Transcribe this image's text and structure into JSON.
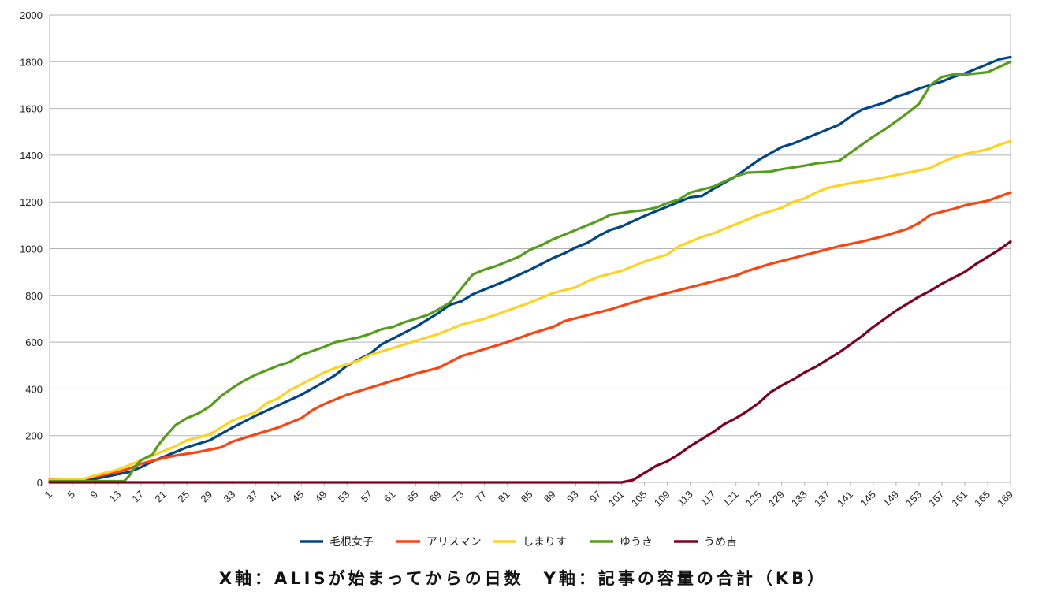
{
  "caption": "X軸：ALISが始まってからの日数　Y軸：記事の容量の合計（KB）",
  "chart_data": {
    "type": "line",
    "title": "",
    "xlabel": "X軸：ALISが始まってからの日数",
    "ylabel": "Y軸：記事の容量の合計（KB）",
    "xlim": [
      1,
      169
    ],
    "ylim": [
      0,
      2000
    ],
    "yticks": [
      0,
      200,
      400,
      600,
      800,
      1000,
      1200,
      1400,
      1600,
      1800,
      2000
    ],
    "xticks": [
      1,
      5,
      9,
      13,
      17,
      21,
      25,
      29,
      33,
      37,
      41,
      45,
      49,
      53,
      57,
      61,
      65,
      69,
      73,
      77,
      81,
      85,
      89,
      93,
      97,
      101,
      105,
      109,
      113,
      117,
      121,
      125,
      129,
      133,
      137,
      141,
      145,
      149,
      153,
      157,
      161,
      165,
      169
    ],
    "grid": true,
    "legend_position": "bottom",
    "series": [
      {
        "name": "毛根女子",
        "color": "#004586",
        "points": [
          [
            1,
            10
          ],
          [
            7,
            10
          ],
          [
            9,
            15
          ],
          [
            13,
            35
          ],
          [
            15,
            45
          ],
          [
            17,
            65
          ],
          [
            19,
            90
          ],
          [
            21,
            110
          ],
          [
            23,
            130
          ],
          [
            25,
            150
          ],
          [
            29,
            180
          ],
          [
            33,
            235
          ],
          [
            37,
            285
          ],
          [
            41,
            330
          ],
          [
            45,
            375
          ],
          [
            49,
            430
          ],
          [
            51,
            460
          ],
          [
            53,
            500
          ],
          [
            57,
            550
          ],
          [
            59,
            590
          ],
          [
            61,
            615
          ],
          [
            63,
            640
          ],
          [
            65,
            665
          ],
          [
            67,
            695
          ],
          [
            69,
            725
          ],
          [
            71,
            760
          ],
          [
            73,
            775
          ],
          [
            75,
            805
          ],
          [
            77,
            825
          ],
          [
            79,
            845
          ],
          [
            81,
            865
          ],
          [
            85,
            910
          ],
          [
            87,
            935
          ],
          [
            89,
            960
          ],
          [
            91,
            980
          ],
          [
            93,
            1005
          ],
          [
            95,
            1025
          ],
          [
            97,
            1055
          ],
          [
            99,
            1080
          ],
          [
            101,
            1095
          ],
          [
            105,
            1140
          ],
          [
            109,
            1180
          ],
          [
            111,
            1200
          ],
          [
            113,
            1220
          ],
          [
            115,
            1225
          ],
          [
            117,
            1255
          ],
          [
            121,
            1310
          ],
          [
            125,
            1380
          ],
          [
            129,
            1435
          ],
          [
            131,
            1450
          ],
          [
            133,
            1470
          ],
          [
            135,
            1490
          ],
          [
            137,
            1510
          ],
          [
            139,
            1530
          ],
          [
            141,
            1565
          ],
          [
            143,
            1595
          ],
          [
            145,
            1610
          ],
          [
            147,
            1625
          ],
          [
            149,
            1650
          ],
          [
            151,
            1665
          ],
          [
            153,
            1685
          ],
          [
            155,
            1700
          ],
          [
            157,
            1715
          ],
          [
            159,
            1735
          ],
          [
            161,
            1750
          ],
          [
            163,
            1770
          ],
          [
            165,
            1790
          ],
          [
            167,
            1810
          ],
          [
            169,
            1820
          ]
        ]
      },
      {
        "name": "アリスマン",
        "color": "#ff420e",
        "points": [
          [
            1,
            15
          ],
          [
            7,
            15
          ],
          [
            9,
            25
          ],
          [
            13,
            45
          ],
          [
            15,
            60
          ],
          [
            17,
            80
          ],
          [
            21,
            105
          ],
          [
            23,
            115
          ],
          [
            27,
            130
          ],
          [
            31,
            150
          ],
          [
            33,
            175
          ],
          [
            35,
            190
          ],
          [
            37,
            205
          ],
          [
            41,
            235
          ],
          [
            43,
            255
          ],
          [
            45,
            275
          ],
          [
            47,
            310
          ],
          [
            49,
            335
          ],
          [
            51,
            355
          ],
          [
            53,
            375
          ],
          [
            57,
            405
          ],
          [
            61,
            435
          ],
          [
            65,
            465
          ],
          [
            69,
            490
          ],
          [
            71,
            515
          ],
          [
            73,
            540
          ],
          [
            77,
            570
          ],
          [
            81,
            600
          ],
          [
            85,
            635
          ],
          [
            89,
            665
          ],
          [
            91,
            690
          ],
          [
            95,
            715
          ],
          [
            99,
            740
          ],
          [
            101,
            755
          ],
          [
            105,
            785
          ],
          [
            109,
            810
          ],
          [
            113,
            835
          ],
          [
            117,
            860
          ],
          [
            121,
            885
          ],
          [
            123,
            905
          ],
          [
            127,
            935
          ],
          [
            131,
            960
          ],
          [
            135,
            985
          ],
          [
            139,
            1010
          ],
          [
            143,
            1030
          ],
          [
            147,
            1055
          ],
          [
            151,
            1085
          ],
          [
            153,
            1110
          ],
          [
            155,
            1145
          ],
          [
            159,
            1170
          ],
          [
            161,
            1185
          ],
          [
            165,
            1205
          ],
          [
            169,
            1240
          ]
        ]
      },
      {
        "name": "しまりす",
        "color": "#ffd320",
        "points": [
          [
            1,
            10
          ],
          [
            7,
            15
          ],
          [
            9,
            30
          ],
          [
            13,
            55
          ],
          [
            15,
            75
          ],
          [
            17,
            95
          ],
          [
            19,
            115
          ],
          [
            21,
            135
          ],
          [
            23,
            155
          ],
          [
            25,
            180
          ],
          [
            29,
            205
          ],
          [
            31,
            235
          ],
          [
            33,
            265
          ],
          [
            37,
            300
          ],
          [
            39,
            340
          ],
          [
            41,
            360
          ],
          [
            43,
            395
          ],
          [
            45,
            420
          ],
          [
            47,
            445
          ],
          [
            49,
            470
          ],
          [
            51,
            490
          ],
          [
            55,
            520
          ],
          [
            57,
            545
          ],
          [
            61,
            575
          ],
          [
            65,
            605
          ],
          [
            69,
            635
          ],
          [
            71,
            655
          ],
          [
            73,
            675
          ],
          [
            77,
            700
          ],
          [
            81,
            735
          ],
          [
            85,
            770
          ],
          [
            87,
            790
          ],
          [
            89,
            810
          ],
          [
            93,
            835
          ],
          [
            95,
            860
          ],
          [
            97,
            880
          ],
          [
            101,
            905
          ],
          [
            105,
            945
          ],
          [
            109,
            975
          ],
          [
            111,
            1010
          ],
          [
            115,
            1050
          ],
          [
            117,
            1065
          ],
          [
            121,
            1105
          ],
          [
            123,
            1125
          ],
          [
            125,
            1145
          ],
          [
            129,
            1175
          ],
          [
            131,
            1200
          ],
          [
            133,
            1215
          ],
          [
            135,
            1240
          ],
          [
            137,
            1260
          ],
          [
            141,
            1280
          ],
          [
            145,
            1295
          ],
          [
            149,
            1315
          ],
          [
            153,
            1335
          ],
          [
            155,
            1345
          ],
          [
            157,
            1370
          ],
          [
            159,
            1390
          ],
          [
            161,
            1405
          ],
          [
            165,
            1425
          ],
          [
            167,
            1445
          ],
          [
            169,
            1460
          ]
        ]
      },
      {
        "name": "ゆうき",
        "color": "#579d1c",
        "points": [
          [
            1,
            5
          ],
          [
            14,
            5
          ],
          [
            15,
            30
          ],
          [
            16,
            70
          ],
          [
            17,
            95
          ],
          [
            19,
            120
          ],
          [
            20,
            160
          ],
          [
            21,
            190
          ],
          [
            23,
            245
          ],
          [
            25,
            275
          ],
          [
            27,
            295
          ],
          [
            29,
            325
          ],
          [
            31,
            370
          ],
          [
            33,
            405
          ],
          [
            35,
            435
          ],
          [
            37,
            460
          ],
          [
            39,
            480
          ],
          [
            41,
            500
          ],
          [
            43,
            515
          ],
          [
            45,
            545
          ],
          [
            49,
            580
          ],
          [
            51,
            600
          ],
          [
            55,
            620
          ],
          [
            57,
            635
          ],
          [
            59,
            655
          ],
          [
            61,
            665
          ],
          [
            63,
            685
          ],
          [
            65,
            700
          ],
          [
            67,
            715
          ],
          [
            69,
            740
          ],
          [
            71,
            770
          ],
          [
            73,
            830
          ],
          [
            75,
            890
          ],
          [
            77,
            910
          ],
          [
            79,
            925
          ],
          [
            81,
            945
          ],
          [
            83,
            965
          ],
          [
            85,
            995
          ],
          [
            87,
            1015
          ],
          [
            89,
            1040
          ],
          [
            91,
            1060
          ],
          [
            93,
            1080
          ],
          [
            95,
            1100
          ],
          [
            97,
            1120
          ],
          [
            99,
            1145
          ],
          [
            103,
            1160
          ],
          [
            105,
            1165
          ],
          [
            107,
            1175
          ],
          [
            109,
            1195
          ],
          [
            111,
            1210
          ],
          [
            113,
            1240
          ],
          [
            117,
            1265
          ],
          [
            121,
            1310
          ],
          [
            123,
            1325
          ],
          [
            127,
            1330
          ],
          [
            129,
            1340
          ],
          [
            133,
            1355
          ],
          [
            135,
            1365
          ],
          [
            139,
            1375
          ],
          [
            141,
            1410
          ],
          [
            143,
            1445
          ],
          [
            145,
            1480
          ],
          [
            147,
            1510
          ],
          [
            149,
            1545
          ],
          [
            151,
            1580
          ],
          [
            153,
            1620
          ],
          [
            155,
            1700
          ],
          [
            157,
            1735
          ],
          [
            159,
            1745
          ],
          [
            161,
            1745
          ],
          [
            165,
            1755
          ],
          [
            169,
            1800
          ]
        ]
      },
      {
        "name": "うめ吉",
        "color": "#7e0021",
        "points": [
          [
            1,
            0
          ],
          [
            101,
            0
          ],
          [
            103,
            10
          ],
          [
            105,
            40
          ],
          [
            107,
            70
          ],
          [
            109,
            90
          ],
          [
            111,
            120
          ],
          [
            113,
            155
          ],
          [
            115,
            185
          ],
          [
            117,
            215
          ],
          [
            119,
            250
          ],
          [
            121,
            275
          ],
          [
            123,
            305
          ],
          [
            125,
            340
          ],
          [
            127,
            385
          ],
          [
            129,
            415
          ],
          [
            131,
            440
          ],
          [
            133,
            470
          ],
          [
            135,
            495
          ],
          [
            137,
            525
          ],
          [
            139,
            555
          ],
          [
            141,
            590
          ],
          [
            143,
            625
          ],
          [
            145,
            665
          ],
          [
            147,
            700
          ],
          [
            149,
            735
          ],
          [
            151,
            765
          ],
          [
            153,
            795
          ],
          [
            155,
            820
          ],
          [
            157,
            850
          ],
          [
            159,
            875
          ],
          [
            161,
            900
          ],
          [
            163,
            935
          ],
          [
            165,
            965
          ],
          [
            167,
            995
          ],
          [
            169,
            1030
          ]
        ]
      }
    ]
  }
}
